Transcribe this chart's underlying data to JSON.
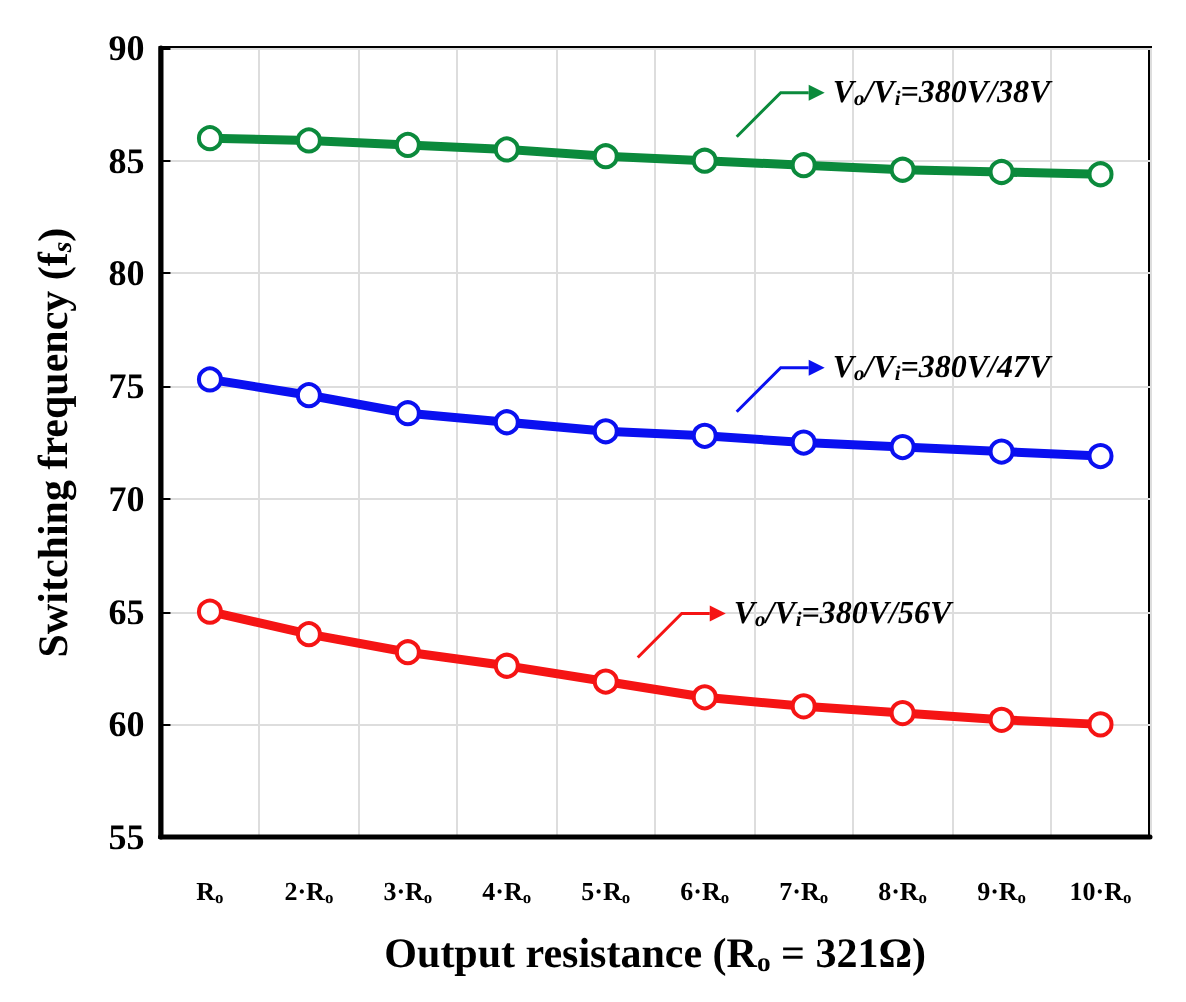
{
  "chart_data": {
    "type": "line",
    "xlabel": "Output resistance (R$_{o}$ = 321Ω)",
    "ylabel": "Switching frequency (f$_{s}$)",
    "categories": [
      "R$_{o}$",
      "2·R$_{o}$",
      "3·R$_{o}$",
      "4·R$_{o}$",
      "5·R$_{o}$",
      "6·R$_{o}$",
      "7·R$_{o}$",
      "8·R$_{o}$",
      "9·R$_{o}$",
      "10·R$_{o}$"
    ],
    "series": [
      {
        "name": "V$_{o}$/V$_{i}$=380V/38V",
        "color": "#0b8a3c",
        "values": [
          86.0,
          85.9,
          85.7,
          85.5,
          85.2,
          85.0,
          84.8,
          84.6,
          84.5,
          84.4
        ]
      },
      {
        "name": "V$_{o}$/V$_{i}$=380V/47V",
        "color": "#0a10f0",
        "values": [
          75.3,
          74.6,
          73.8,
          73.4,
          73.0,
          72.8,
          72.5,
          72.3,
          72.1,
          71.9
        ]
      },
      {
        "name": "V$_{o}$/V$_{i}$=380V/56V",
        "color": "#f51414",
        "values": [
          65.0,
          64.0,
          63.2,
          62.6,
          61.9,
          61.2,
          60.8,
          60.5,
          60.2,
          60.0
        ]
      }
    ],
    "ylim": [
      55,
      90
    ],
    "yticks": [
      55,
      60,
      65,
      70,
      75,
      80,
      85,
      90
    ],
    "grid": true,
    "legend": "right",
    "marker": "circle",
    "line_style": "solid"
  }
}
